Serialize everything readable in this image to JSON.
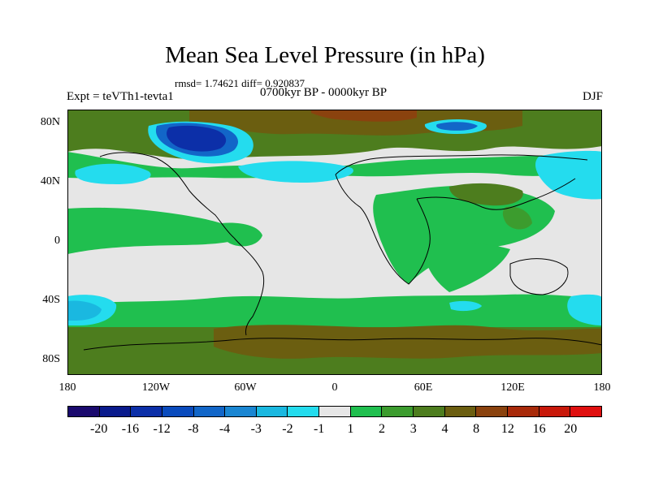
{
  "title": "Mean Sea Level Pressure (in hPa)",
  "stats": "rmsd= 1.74621 diff= 0.920837",
  "period": "0700kyr BP - 0000kyr BP",
  "experiment": "Expt = teVTh1-tevta1",
  "season": "DJF",
  "lat_labels": [
    "80N",
    "40N",
    "0",
    "40S",
    "80S"
  ],
  "lon_labels": [
    "180",
    "120W",
    "60W",
    "0",
    "60E",
    "120E",
    "180"
  ],
  "colorbar": {
    "labels": [
      "-20",
      "-16",
      "-12",
      "-8",
      "-4",
      "-3",
      "-2",
      "-1",
      "1",
      "2",
      "3",
      "4",
      "8",
      "12",
      "16",
      "20"
    ],
    "colors": [
      "#1a0a6e",
      "#0a1a8c",
      "#0c2fa8",
      "#0a4bbd",
      "#1266c8",
      "#1a86d2",
      "#1ab8e0",
      "#24dcee",
      "#e6e6e6",
      "#20bf4f",
      "#3c9c2e",
      "#4d7d1e",
      "#6b5e10",
      "#8a420e",
      "#a82a0a",
      "#c8180a",
      "#e01010"
    ]
  },
  "palette": {
    "background": "#e6e6e6",
    "pos1": "#20bf4f",
    "pos2": "#3c9c2e",
    "pos3": "#4d7d1e",
    "pos4": "#6b5e10",
    "pos5": "#8a420e",
    "neg1": "#24dcee",
    "neg2": "#1ab8e0",
    "neg3": "#1266c8",
    "neg4": "#0c2fa8",
    "coast": "#000000"
  }
}
